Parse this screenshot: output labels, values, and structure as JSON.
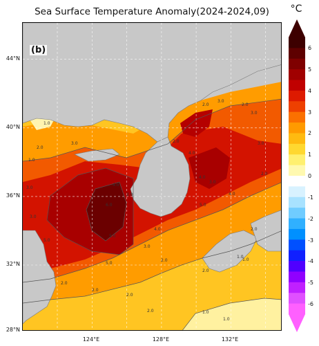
{
  "header": {
    "title": "Sea Surface Temperature Anomaly(2024-2024,09)",
    "unit": "°C"
  },
  "map": {
    "panel_label": "(b)",
    "lat_labels": [
      "44°N",
      "40°N",
      "36°N",
      "32°N",
      "28°N"
    ],
    "lon_labels": [
      "124°E",
      "128°E",
      "132°E"
    ],
    "lon_range": [
      120,
      134
    ],
    "lat_range": [
      28,
      46
    ],
    "contour_labels": [
      "1.0",
      "2.0",
      "3.0",
      "2.0",
      "4.0",
      "1.0",
      "2.0",
      "3.0",
      "2.0",
      "3.0",
      "2.0",
      "3.0",
      "4.0",
      "3.0",
      "5.0",
      "4.0",
      "5.0",
      "6.0",
      "2.0",
      "4.0",
      "5.0",
      "4.0",
      "5.0",
      "1.0",
      "2.0",
      "2.0",
      "3.0",
      "2.0",
      "3.0",
      "3.0",
      "1.0",
      "1.0",
      "2.0",
      "1.0",
      "2.0",
      "2.0",
      "2.0"
    ]
  },
  "colorbar": {
    "tick_labels": [
      "6",
      "5",
      "4",
      "3",
      "2",
      "1",
      "0",
      "-1",
      "-2",
      "-3",
      "-4",
      "-5",
      "-6"
    ],
    "colors": [
      "#3d0000",
      "#5e0000",
      "#7f0000",
      "#a00000",
      "#c00000",
      "#dd1a00",
      "#ee4000",
      "#fb7000",
      "#ff9a00",
      "#ffba10",
      "#ffd830",
      "#fff070",
      "#fff9b0",
      "#ffffff",
      "#d8f2ff",
      "#a8e2ff",
      "#70ccff",
      "#30b0ff",
      "#0090ff",
      "#0050ff",
      "#1020ff",
      "#5000ff",
      "#9000ff",
      "#c020ff",
      "#e050ff",
      "#ff60ff"
    ]
  }
}
